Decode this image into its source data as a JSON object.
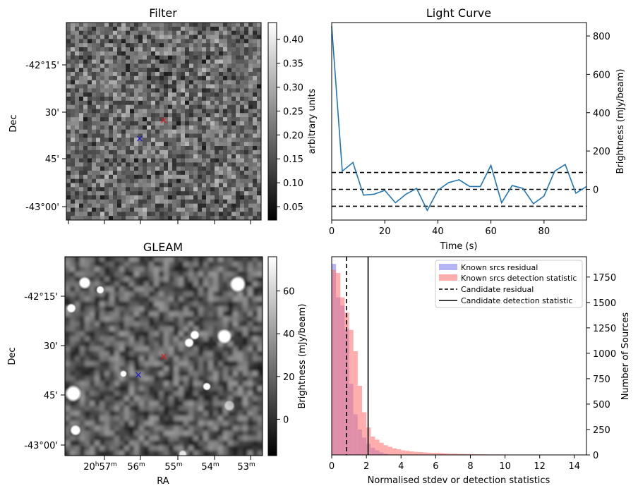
{
  "colors": {
    "line": "#1f77b4",
    "residual_fill": "#7777ee",
    "detection_fill": "#ff7777",
    "marker_red": "#e41a1c",
    "marker_blue": "#1a1adb"
  },
  "panels": {
    "filter": {
      "title": "Filter",
      "ylabel": "Dec",
      "dec_ticks": [
        "-42°15'",
        "30'",
        "45'",
        "-43°00'"
      ],
      "colorbar": {
        "label": "arbitrary units",
        "ticks": [
          "0.05",
          "0.10",
          "0.15",
          "0.20",
          "0.25",
          "0.30",
          "0.35",
          "0.40"
        ]
      }
    },
    "gleam": {
      "title": "GLEAM",
      "ylabel": "Dec",
      "xlabel": "RA",
      "dec_ticks": [
        "-42°15'",
        "30'",
        "45'",
        "-43°00'"
      ],
      "ra_ticks": [
        {
          "main": "20",
          "h": "h",
          "min": "57",
          "m": "m"
        },
        {
          "main": "56",
          "m": "m"
        },
        {
          "main": "55",
          "m": "m"
        },
        {
          "main": "54",
          "m": "m"
        },
        {
          "main": "53",
          "m": "m"
        }
      ],
      "colorbar": {
        "label": "Brightness (mJy/beam)",
        "ticks": [
          "0",
          "20",
          "40",
          "60"
        ]
      }
    }
  },
  "chart_data": [
    {
      "type": "line",
      "title": "Light Curve",
      "xlabel": "Time (s)",
      "ylabel": "Brightness (mJy/beam)",
      "xlim": [
        0,
        96
      ],
      "ylim": [
        -160,
        870
      ],
      "x_ticks": [
        0,
        20,
        40,
        60,
        80
      ],
      "y_ticks": [
        0,
        200,
        400,
        600,
        800
      ],
      "x": [
        0,
        4,
        8,
        12,
        16,
        20,
        24,
        28,
        32,
        36,
        40,
        44,
        48,
        52,
        56,
        60,
        64,
        68,
        72,
        76,
        80,
        84,
        88,
        92,
        96
      ],
      "values": [
        850,
        95,
        140,
        -30,
        -25,
        -5,
        -70,
        -25,
        5,
        -110,
        -5,
        35,
        50,
        15,
        15,
        125,
        -70,
        20,
        5,
        -75,
        -35,
        95,
        130,
        -20,
        15
      ],
      "hlines": [
        {
          "y": 88,
          "style": "dashed"
        },
        {
          "y": 0,
          "style": "dashed"
        },
        {
          "y": -88,
          "style": "dashed"
        }
      ]
    },
    {
      "type": "bar",
      "subtype": "histogram",
      "xlabel": "Normalised stdev or detection statistics",
      "ylabel": "Number of Sources",
      "xlim": [
        0,
        14.7
      ],
      "ylim": [
        0,
        1950
      ],
      "x_ticks": [
        0,
        2,
        4,
        6,
        8,
        10,
        12,
        14
      ],
      "y_ticks": [
        0,
        250,
        500,
        750,
        1000,
        1250,
        1500,
        1750
      ],
      "bin_width": 0.25,
      "legend_position": "top-right",
      "series": [
        {
          "name": "Known srcs residual",
          "bin_starts": [
            0,
            0.25,
            0.5,
            0.75,
            1.0,
            1.25,
            1.5,
            1.75,
            2.0,
            2.25,
            2.5,
            2.75,
            3.0
          ],
          "values": [
            1880,
            1550,
            1470,
            1240,
            700,
            400,
            250,
            170,
            110,
            70,
            45,
            25,
            12
          ]
        },
        {
          "name": "Known srcs detection statistic",
          "bin_starts": [
            0,
            0.25,
            0.5,
            0.75,
            1.0,
            1.25,
            1.5,
            1.75,
            2.0,
            2.25,
            2.5,
            2.75,
            3.0,
            3.25,
            3.5,
            3.75,
            4.0,
            4.25,
            4.5,
            4.75,
            5.0,
            5.25,
            5.5,
            5.75,
            6.0,
            6.25,
            6.5,
            6.75,
            7.0,
            7.25,
            7.5,
            7.75,
            8.0,
            8.25,
            8.5,
            8.75,
            9.0,
            9.25,
            9.5,
            9.75,
            10.0,
            10.25,
            10.5,
            10.75,
            11.0,
            11.25,
            11.5,
            11.75,
            12.0,
            12.25,
            12.5,
            12.75,
            13.0,
            13.25,
            13.5,
            13.75
          ],
          "values": [
            1820,
            1790,
            1550,
            1400,
            1230,
            1020,
            680,
            420,
            270,
            180,
            150,
            120,
            95,
            80,
            65,
            55,
            45,
            40,
            35,
            30,
            28,
            25,
            22,
            20,
            20,
            18,
            15,
            12,
            12,
            10,
            10,
            9,
            8,
            7,
            6,
            6,
            5,
            5,
            5,
            4,
            4,
            3,
            3,
            3,
            3,
            2,
            2,
            2,
            2,
            2,
            2,
            1,
            1,
            1,
            1,
            1
          ]
        }
      ],
      "vlines": [
        {
          "name": "Candidate residual",
          "x": 0.85,
          "style": "dashed"
        },
        {
          "name": "Candidate detection statistic",
          "x": 2.1,
          "style": "solid"
        }
      ]
    }
  ]
}
